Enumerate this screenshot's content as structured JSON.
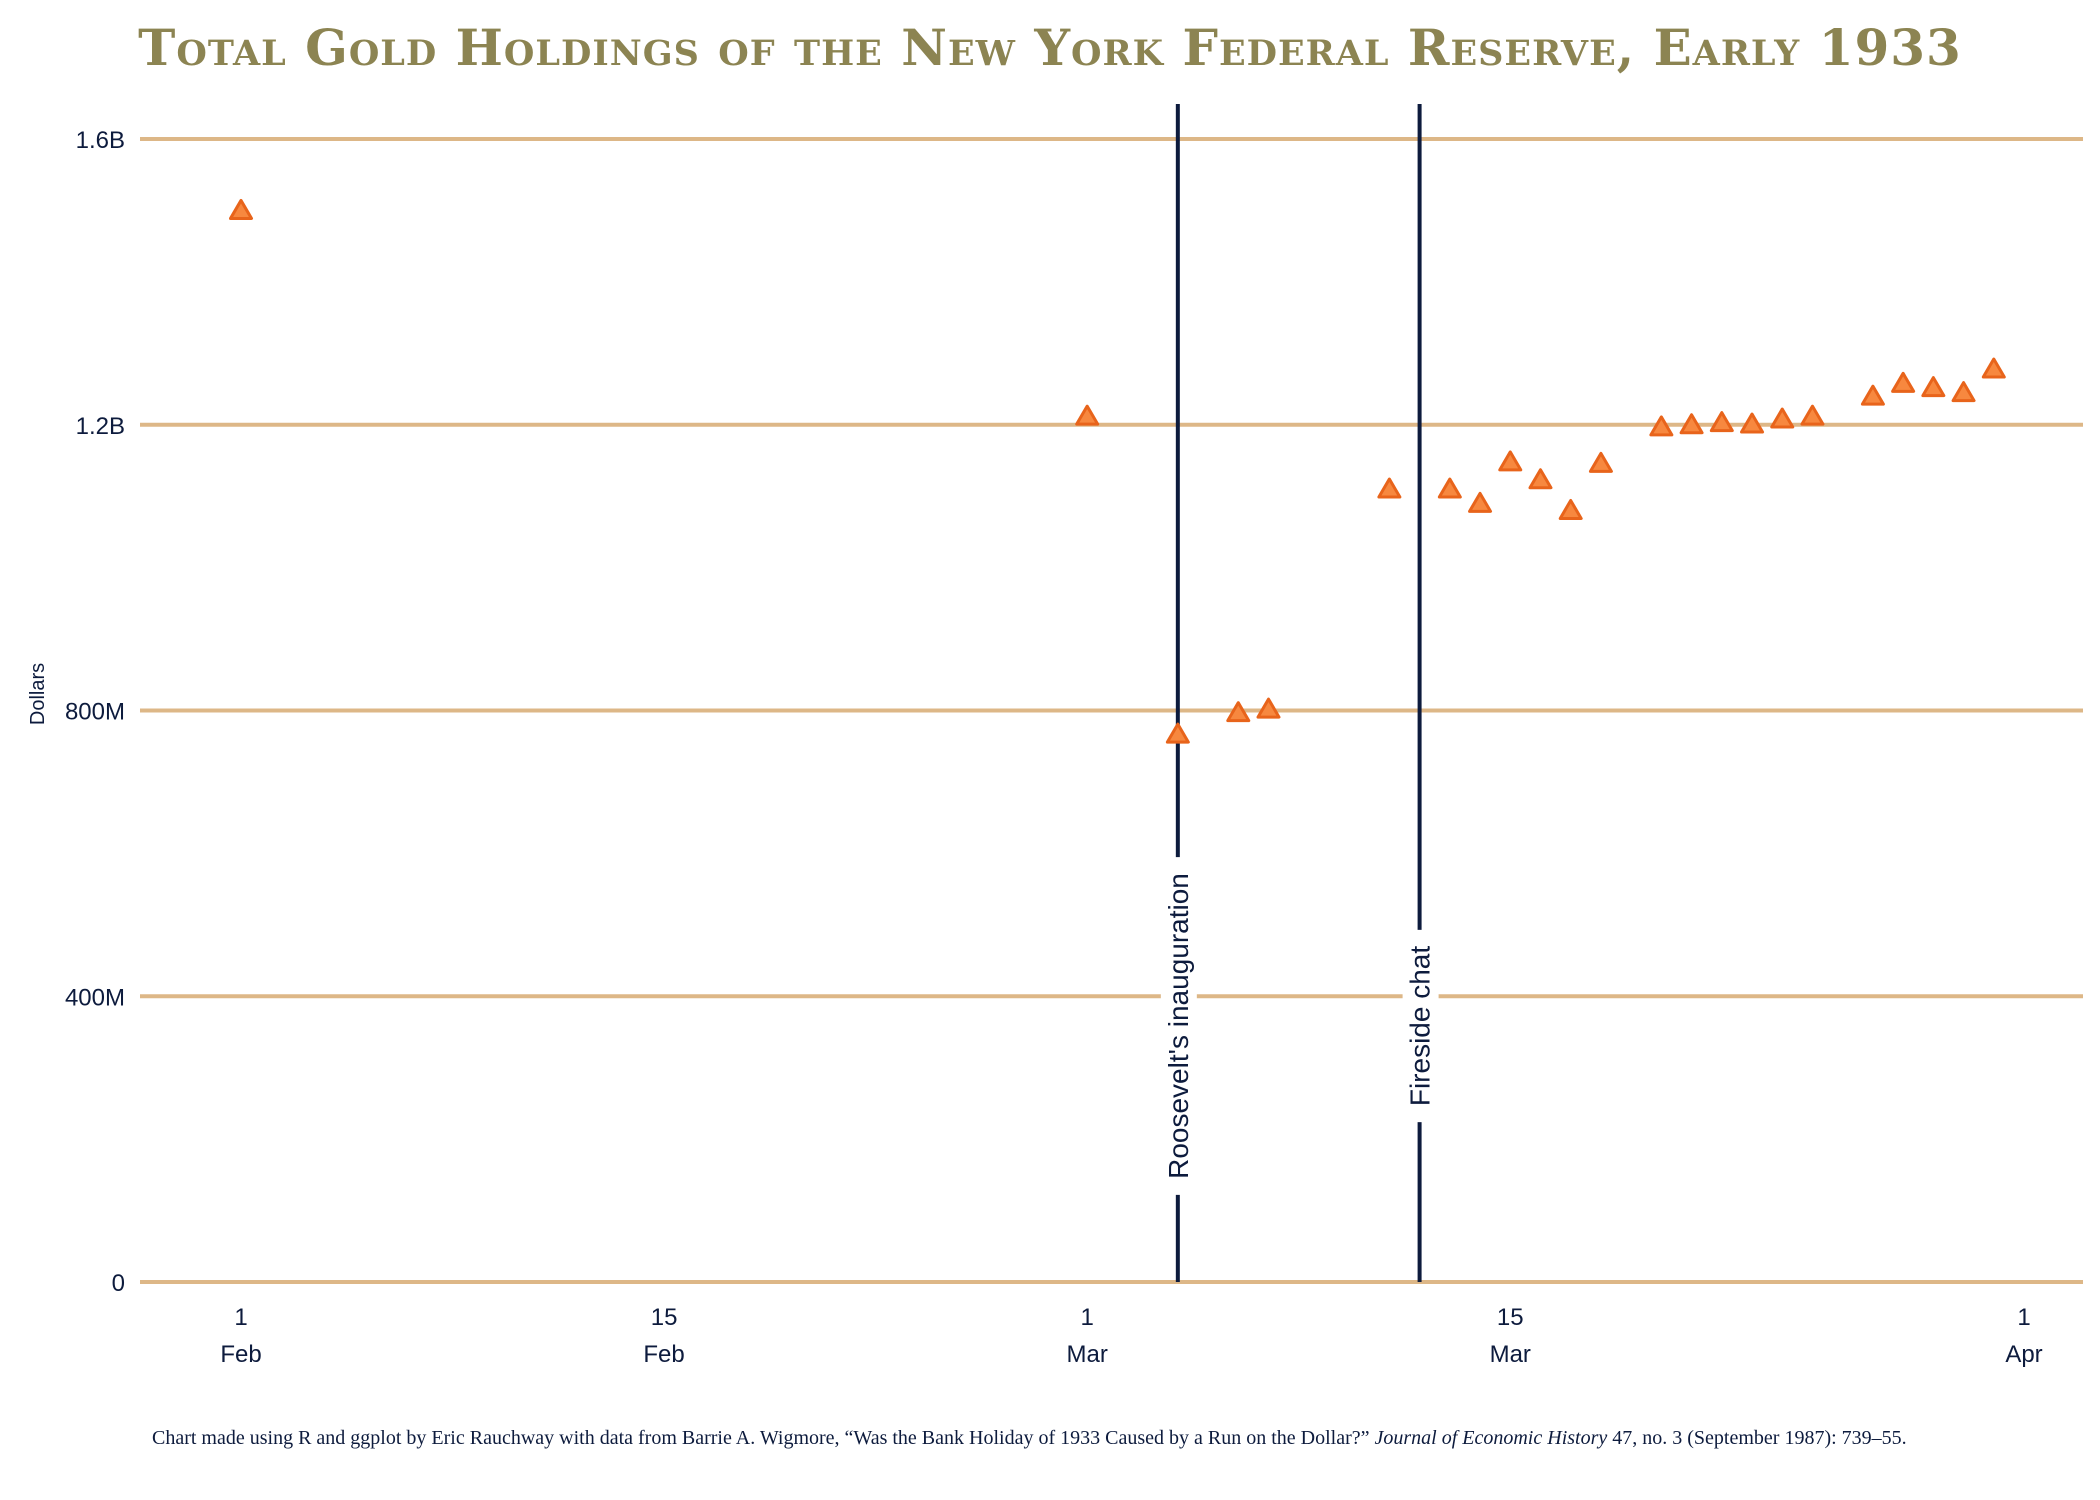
{
  "title": "Total Gold Holdings of the New York Federal Reserve, Early 1933",
  "caption": {
    "before": "Chart made using R and ggplot by Eric Rauchway with data from Barrie A. Wigmore, “Was the Bank Holiday of 1933 Caused by a Run on the Dollar?” ",
    "journal": "Journal of Economic History",
    "after": " 47, no. 3 (September 1987): 739–55."
  },
  "colors": {
    "title": "#8c8452",
    "gridline": "#ddb787",
    "point_fill": "#f7883f",
    "point_stroke": "#e8641b",
    "event_line": "#0d1b3d",
    "text": "#0d1b3d"
  },
  "chart_data": {
    "type": "scatter",
    "title": "Total Gold Holdings of the New York Federal Reserve, Early 1933",
    "xlabel": "",
    "ylabel": "Dollars",
    "ylim": [
      0,
      1650000000
    ],
    "xlim": [
      "1933-01-28",
      "1933-04-02"
    ],
    "grid": "horizontal",
    "marker": "triangle",
    "y_ticks": [
      {
        "value": 0,
        "label": "0"
      },
      {
        "value": 400000000,
        "label": "400M"
      },
      {
        "value": 800000000,
        "label": "800M"
      },
      {
        "value": 1200000000,
        "label": "1.2B"
      },
      {
        "value": 1600000000,
        "label": "1.6B"
      }
    ],
    "x_ticks": [
      {
        "date": "1933-02-01",
        "day": "1",
        "month": "Feb"
      },
      {
        "date": "1933-02-15",
        "day": "15",
        "month": "Feb"
      },
      {
        "date": "1933-03-01",
        "day": "1",
        "month": "Mar"
      },
      {
        "date": "1933-03-15",
        "day": "15",
        "month": "Mar"
      },
      {
        "date": "1933-04-01",
        "day": "1",
        "month": "Apr"
      }
    ],
    "events": [
      {
        "date": "1933-03-04",
        "label": "Roosevelt's inauguration"
      },
      {
        "date": "1933-03-12",
        "label": "Fireside chat"
      }
    ],
    "points": [
      {
        "x": "1933-02-01",
        "y": 1500000000
      },
      {
        "x": "1933-03-01",
        "y": 1212000000
      },
      {
        "x": "1933-03-04",
        "y": 767000000
      },
      {
        "x": "1933-03-06",
        "y": 797000000
      },
      {
        "x": "1933-03-07",
        "y": 802000000
      },
      {
        "x": "1933-03-11",
        "y": 1110000000
      },
      {
        "x": "1933-03-13",
        "y": 1110000000
      },
      {
        "x": "1933-03-14",
        "y": 1090000000
      },
      {
        "x": "1933-03-15",
        "y": 1148000000
      },
      {
        "x": "1933-03-16",
        "y": 1123000000
      },
      {
        "x": "1933-03-17",
        "y": 1080000000
      },
      {
        "x": "1933-03-18",
        "y": 1146000000
      },
      {
        "x": "1933-03-20",
        "y": 1197000000
      },
      {
        "x": "1933-03-21",
        "y": 1200000000
      },
      {
        "x": "1933-03-22",
        "y": 1203000000
      },
      {
        "x": "1933-03-23",
        "y": 1201000000
      },
      {
        "x": "1933-03-24",
        "y": 1208000000
      },
      {
        "x": "1933-03-25",
        "y": 1212000000
      },
      {
        "x": "1933-03-27",
        "y": 1240000000
      },
      {
        "x": "1933-03-28",
        "y": 1258000000
      },
      {
        "x": "1933-03-29",
        "y": 1252000000
      },
      {
        "x": "1933-03-30",
        "y": 1245000000
      },
      {
        "x": "1933-03-31",
        "y": 1278000000
      }
    ]
  }
}
